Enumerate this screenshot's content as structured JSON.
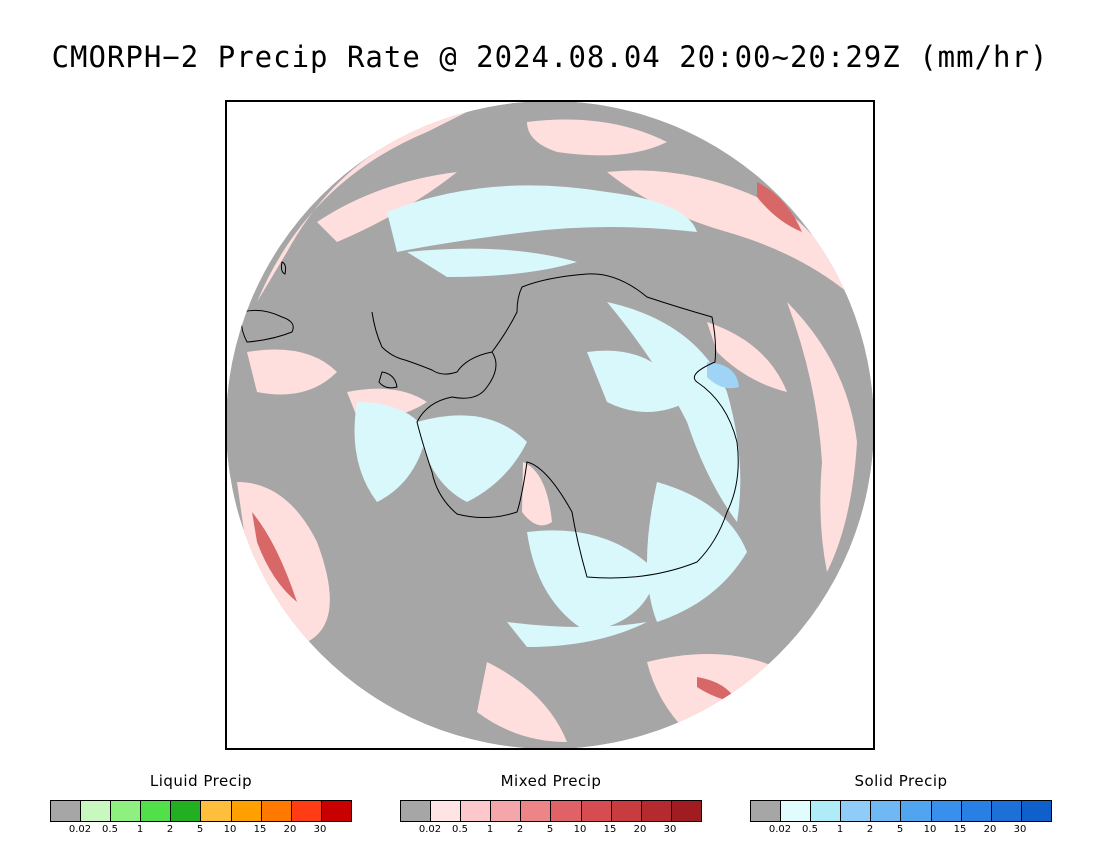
{
  "title": "CMORPH−2 Precip Rate @ 2024.08.04 20:00~20:29Z (mm/hr)",
  "map": {
    "projection": "south-polar-stereographic",
    "colors": {
      "no_precip": "#a6a6a6",
      "mixed_light": "#ffdede",
      "mixed_mid": "#f2a4a4",
      "mixed_heavy": "#d86868",
      "solid_light": "#d8f8fc",
      "solid_mid": "#9fd4f6",
      "coast": "#000000"
    }
  },
  "legends": [
    {
      "title": "Liquid Precip",
      "colors": [
        "#a6a6a6",
        "#c8f8c0",
        "#8ef07e",
        "#52e04a",
        "#22b022",
        "#ffbe3c",
        "#ffa000",
        "#ff7800",
        "#ff3c14",
        "#c80000"
      ],
      "ticks": [
        "0.02",
        "0.5",
        "1",
        "2",
        "5",
        "10",
        "15",
        "20",
        "30"
      ]
    },
    {
      "title": "Mixed Precip",
      "colors": [
        "#a6a6a6",
        "#ffe4e6",
        "#fcc8cc",
        "#f4a6aa",
        "#ec8488",
        "#e06266",
        "#d64c50",
        "#c83c40",
        "#b42a2e",
        "#a01c20"
      ],
      "ticks": [
        "0.02",
        "0.5",
        "1",
        "2",
        "5",
        "10",
        "15",
        "20",
        "30"
      ]
    },
    {
      "title": "Solid Precip",
      "colors": [
        "#a6a6a6",
        "#e0fcfc",
        "#b0ecf8",
        "#90ccf8",
        "#70b8f4",
        "#50a4f0",
        "#3890ec",
        "#2880e4",
        "#1c70d8",
        "#1060cc"
      ],
      "ticks": [
        "0.02",
        "0.5",
        "1",
        "2",
        "5",
        "10",
        "15",
        "20",
        "30"
      ]
    }
  ]
}
